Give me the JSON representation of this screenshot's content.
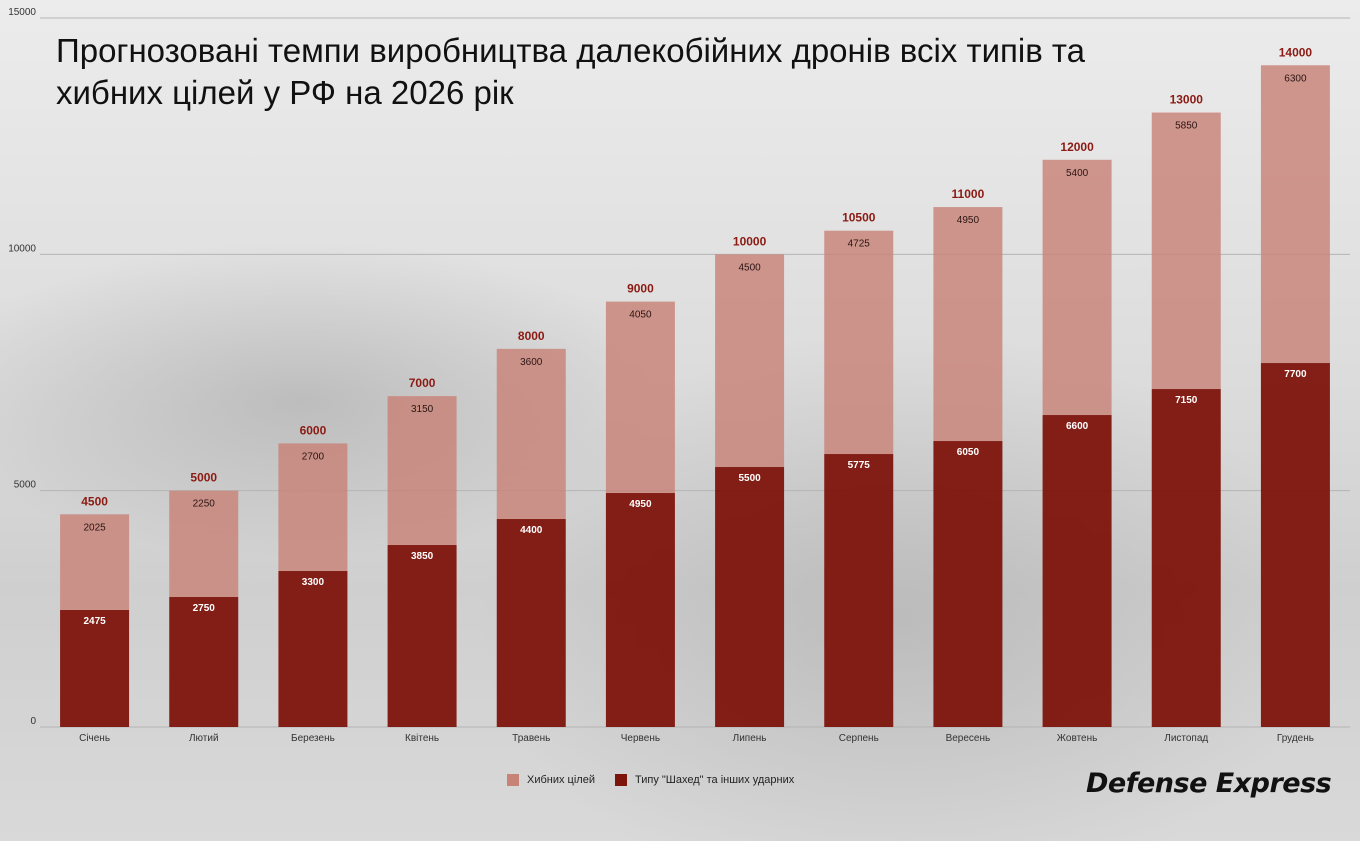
{
  "title": "Прогнозовані темпи виробництва далекобійних дронів всіх типів та хибних цілей у РФ на 2026 рік",
  "brand": "Defense Express",
  "colors": {
    "strike": "#7d140c",
    "decoy": "#c88377",
    "total_label": "#8b1a12",
    "axis_text": "#333333",
    "grid": "#b4b4b4"
  },
  "legend": [
    {
      "name": "Хибних цілей",
      "color": "#c88377"
    },
    {
      "name": "Типу \"Шахед\" та інших ударних",
      "color": "#7d140c"
    }
  ],
  "chart_data": {
    "type": "bar",
    "stacked": true,
    "categories": [
      "Січень",
      "Лютий",
      "Березень",
      "Квітень",
      "Травень",
      "Червень",
      "Липень",
      "Серпень",
      "Вересень",
      "Жовтень",
      "Листопад",
      "Грудень"
    ],
    "series": [
      {
        "name": "Типу \"Шахед\" та інших ударних",
        "values": [
          2475,
          2750,
          3300,
          3850,
          4400,
          4950,
          5500,
          5775,
          6050,
          6600,
          7150,
          7700
        ]
      },
      {
        "name": "Хибних цілей",
        "values": [
          2025,
          2250,
          2700,
          3150,
          3600,
          4050,
          4500,
          4725,
          4950,
          5400,
          5850,
          6300
        ]
      }
    ],
    "totals": [
      4500,
      5000,
      6000,
      7000,
      8000,
      9000,
      10000,
      10500,
      11000,
      12000,
      13000,
      14000
    ],
    "ylim": [
      0,
      15000
    ],
    "yticks": [
      0,
      5000,
      10000,
      15000
    ],
    "grid": true,
    "legend_position": "bottom"
  }
}
